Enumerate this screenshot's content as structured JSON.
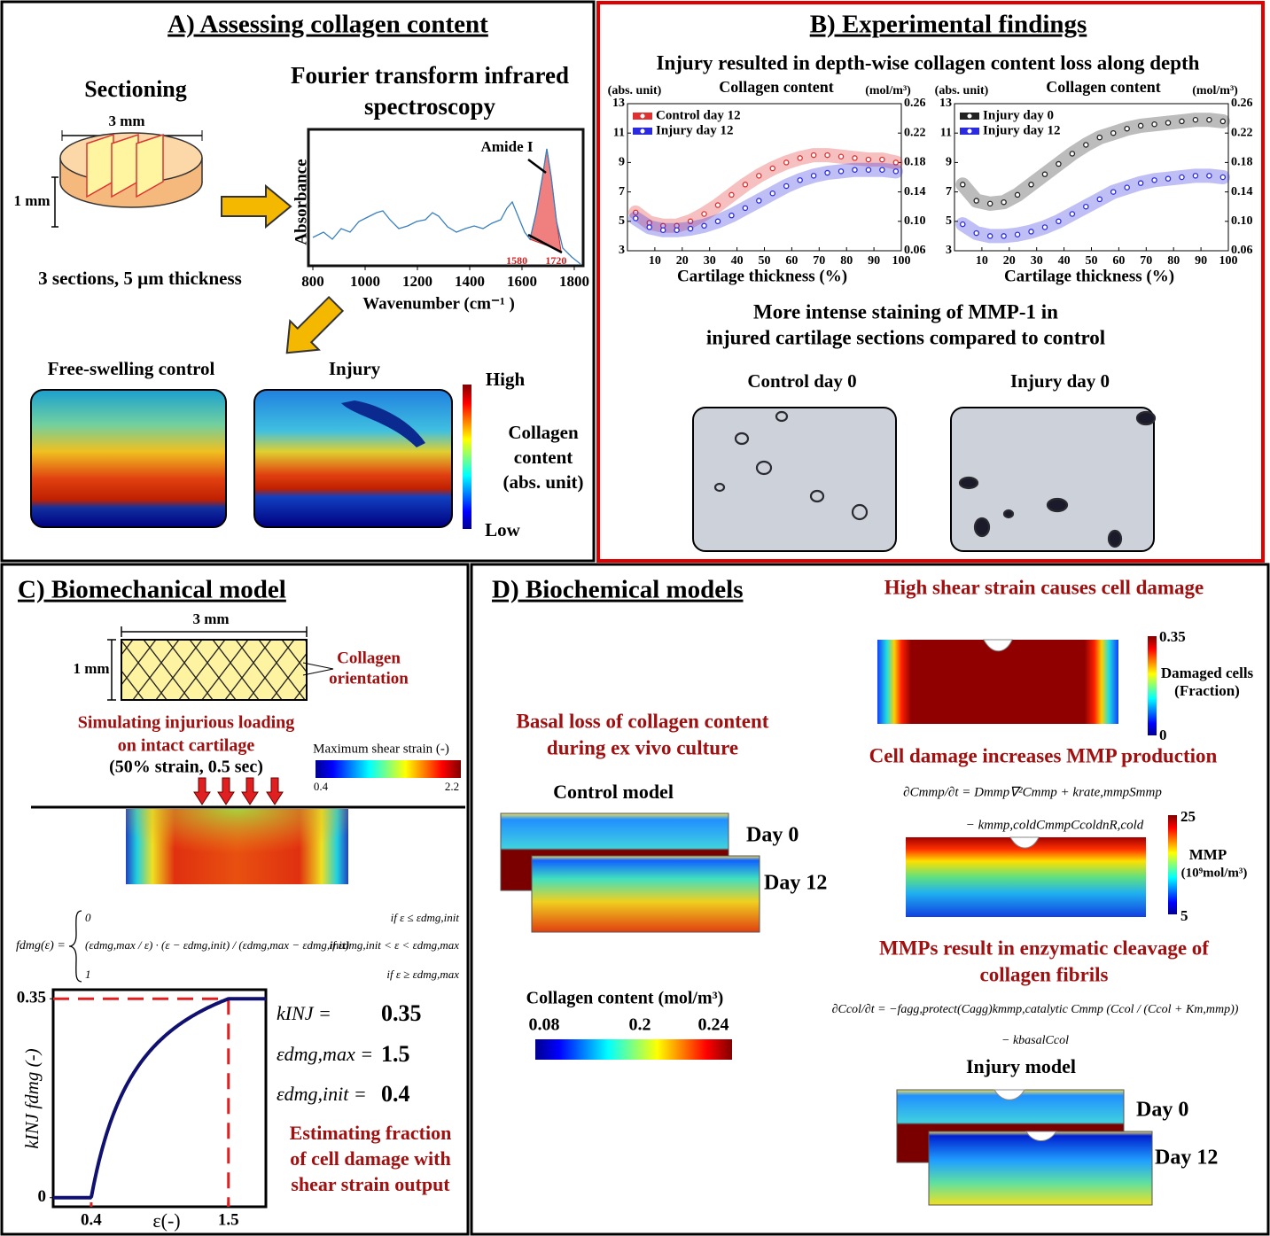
{
  "panel_a": {
    "title": "A) Assessing collagen content",
    "sectioning": "Sectioning",
    "width_label": "3 mm",
    "height_label": "1 mm",
    "sections_note": "3 sections, 5 µm thickness",
    "ftir_title": [
      "Fourier transform infrared",
      "spectroscopy"
    ],
    "ftir": {
      "ylabel": "Absorbance",
      "xlabel": "Wavenumber (cm⁻¹ )",
      "annotation": "Amide I",
      "peak_bounds": [
        1580,
        1720
      ],
      "xlim": [
        783,
        1834
      ],
      "xticks": [
        800,
        1000,
        1200,
        1400,
        1600,
        1800
      ]
    },
    "images": [
      "Free-swelling control",
      "Injury"
    ],
    "colorbar": {
      "high": "High",
      "title": [
        "Collagen",
        "content",
        "(abs. unit)"
      ],
      "low": "Low"
    }
  },
  "panel_b": {
    "title": "B) Experimental findings",
    "subtitle": "Injury resulted in depth-wise collagen content loss along depth",
    "charts": [
      {
        "type": "line",
        "title": "Collagen content",
        "ylabel": "(abs. unit)",
        "y2label": "(mol/m³)",
        "xlabel": "Cartilage thickness (%)",
        "xlim": [
          0,
          100
        ],
        "xticks": [
          10,
          20,
          30,
          40,
          50,
          60,
          70,
          80,
          90,
          100
        ],
        "ylim": [
          3,
          13
        ],
        "yticks": [
          3,
          5,
          7,
          9,
          11,
          13
        ],
        "y2lim": [
          0.06,
          0.26
        ],
        "y2ticks": [
          0.06,
          {
            "value": 0.1,
            "label": "0.10"
          },
          0.14,
          0.18,
          0.22,
          0.26
        ],
        "x": [
          3,
          8,
          13,
          18,
          23,
          28,
          33,
          38,
          43,
          48,
          53,
          58,
          63,
          68,
          73,
          78,
          83,
          88,
          93,
          98
        ],
        "series": [
          {
            "name": "Control day 12",
            "color": "#e03030",
            "values": [
              5.6,
              4.9,
              4.7,
              4.7,
              5.0,
              5.5,
              6.1,
              6.8,
              7.5,
              8.1,
              8.6,
              9.0,
              9.3,
              9.5,
              9.5,
              9.4,
              9.3,
              9.2,
              9.2,
              9.0
            ]
          },
          {
            "name": "Injury day 12",
            "color": "#2a2ae0",
            "values": [
              5.2,
              4.6,
              4.4,
              4.4,
              4.5,
              4.7,
              5.0,
              5.4,
              5.9,
              6.4,
              6.9,
              7.4,
              7.8,
              8.1,
              8.3,
              8.4,
              8.5,
              8.5,
              8.5,
              8.4
            ]
          }
        ]
      },
      {
        "type": "line",
        "title": "Collagen content",
        "ylabel": "(abs. unit)",
        "y2label": "(mol/m³)",
        "xlabel": "Cartilage thickness (%)",
        "xlim": [
          0,
          100
        ],
        "xticks": [
          10,
          20,
          30,
          40,
          50,
          60,
          70,
          80,
          90,
          100
        ],
        "ylim": [
          3,
          13
        ],
        "yticks": [
          3,
          5,
          7,
          9,
          11,
          13
        ],
        "y2lim": [
          0.06,
          0.26
        ],
        "y2ticks": [
          0.06,
          {
            "value": 0.1,
            "label": "0.10"
          },
          0.14,
          0.18,
          0.22,
          0.26
        ],
        "x": [
          3,
          8,
          13,
          18,
          23,
          28,
          33,
          38,
          43,
          48,
          53,
          58,
          63,
          68,
          73,
          78,
          83,
          88,
          93,
          98
        ],
        "series": [
          {
            "name": "Injury day 0",
            "color": "#222222",
            "values": [
              7.5,
              6.4,
              6.2,
              6.3,
              6.8,
              7.5,
              8.2,
              8.9,
              9.6,
              10.2,
              10.7,
              11.0,
              11.3,
              11.5,
              11.6,
              11.7,
              11.8,
              11.9,
              11.9,
              11.8
            ]
          },
          {
            "name": "Injury day 12",
            "color": "#2a2ae0",
            "values": [
              4.8,
              4.2,
              4.0,
              4.0,
              4.1,
              4.3,
              4.6,
              5.0,
              5.5,
              6.0,
              6.5,
              7.0,
              7.3,
              7.6,
              7.8,
              7.9,
              8.0,
              8.1,
              8.1,
              8.0
            ]
          }
        ]
      }
    ],
    "staining_title": [
      "More intense staining of MMP-1 in",
      "injured cartilage sections compared to control"
    ],
    "images": [
      "Control day 0",
      "Injury day 0"
    ]
  },
  "panel_c": {
    "title": "C) Biomechanical model",
    "width_label": "3 mm",
    "height_label": "1 mm",
    "fiber_label": [
      "Collagen",
      "orientation"
    ],
    "sim_title": [
      "Simulating injurious loading",
      "on intact cartilage"
    ],
    "sim_params": "(50% strain, 0.5 sec)",
    "colorbar": {
      "title": "Maximum shear strain (-)",
      "min": 0.4,
      "max": 2.2
    },
    "equation": {
      "lhs": "fdmg(ε) =",
      "cases": [
        {
          "expr": "0",
          "cond": "if  ε ≤ εdmg,init"
        },
        {
          "expr": "(εdmg,max / ε) · (ε − εdmg,init) / (εdmg,max − εdmg,init)",
          "cond": "if  εdmg,init < ε < εdmg,max"
        },
        {
          "expr": "1",
          "cond": "if  ε ≥ εdmg,max"
        }
      ]
    },
    "plot": {
      "ylabel": "kINJ fdmg (-)",
      "xlabel": "ε(-)",
      "xlim": [
        0.095,
        1.8
      ],
      "ylim": [
        -0.016,
        0.366
      ],
      "xticks": [
        0.4,
        1.5
      ],
      "yticks": [
        0,
        0.35
      ]
    },
    "params": [
      {
        "label": "kINJ  =",
        "value": 0.35
      },
      {
        "label": "εdmg,max =",
        "value": 1.5
      },
      {
        "label": "εdmg,init =",
        "value": 0.4
      }
    ],
    "note": [
      "Estimating fraction",
      "of cell damage with",
      "shear strain output"
    ]
  },
  "panel_d": {
    "title": "D) Biochemical models",
    "basal_title": [
      "Basal loss of collagen content",
      "during ex vivo culture"
    ],
    "control_model": "Control model",
    "control_days": [
      "Day 0",
      "Day 12"
    ],
    "colorbar": {
      "title": "Collagen content (mol/m³)",
      "ticks": [
        0.08,
        0.2,
        0.24
      ]
    },
    "shear_title": "High shear strain causes cell damage",
    "damage_colorbar": {
      "max": 0.35,
      "min": 0,
      "title": [
        "Damaged cells",
        "(Fraction)"
      ]
    },
    "mmp_title": "Cell damage increases MMP production",
    "mmp_equation": [
      "∂Cmmp/∂t = Dmmp∇²Cmmp + krate,mmpSmmp",
      "− kmmp,coldCmmpCcoldnR,cold"
    ],
    "mmp_colorbar": {
      "max": 25,
      "min": 5,
      "title": [
        "MMP",
        "(10⁹mol/m³)"
      ]
    },
    "cleavage_title": [
      "MMPs result in enzymatic cleavage of",
      "collagen fibrils"
    ],
    "col_equation": [
      "∂Ccol/∂t = −fagg,protect(Cagg)kmmp,catalytic Cmmp (Ccol / (Ccol + Km,mmp))",
      "− kbasalCcol"
    ],
    "injury_model": "Injury model",
    "injury_days": [
      "Day 0",
      "Day 12"
    ]
  }
}
